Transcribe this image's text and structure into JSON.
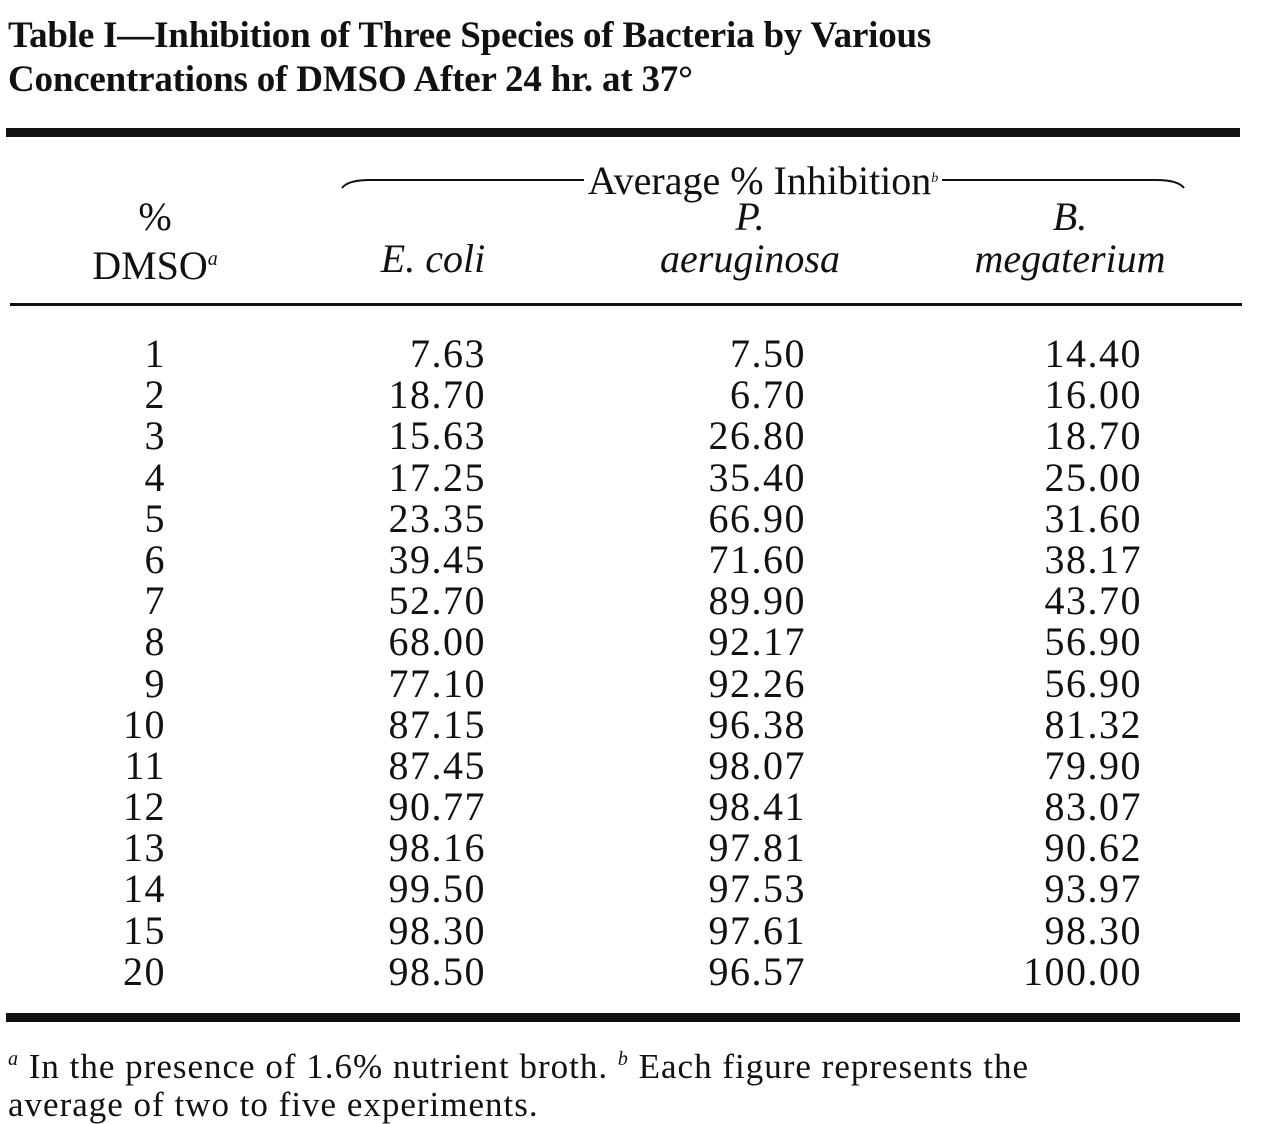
{
  "title": {
    "line1": "Table I—Inhibition of Three Species of Bacteria by Various",
    "line2": "Concentrations of DMSO After 24 hr. at 37°"
  },
  "header": {
    "span_label": "Average % Inhibition",
    "span_note": "b",
    "col0_line1": "%",
    "col0_line2": "DMSO",
    "col0_note": "a",
    "col1": "E. coli",
    "col2_line1": "P.",
    "col2_line2": "aeruginosa",
    "col3_line1": "B.",
    "col3_line2": "megaterium"
  },
  "rows": [
    [
      "1",
      "7.63",
      "7.50",
      "14.40"
    ],
    [
      "2",
      "18.70",
      "6.70",
      "16.00"
    ],
    [
      "3",
      "15.63",
      "26.80",
      "18.70"
    ],
    [
      "4",
      "17.25",
      "35.40",
      "25.00"
    ],
    [
      "5",
      "23.35",
      "66.90",
      "31.60"
    ],
    [
      "6",
      "39.45",
      "71.60",
      "38.17"
    ],
    [
      "7",
      "52.70",
      "89.90",
      "43.70"
    ],
    [
      "8",
      "68.00",
      "92.17",
      "56.90"
    ],
    [
      "9",
      "77.10",
      "92.26",
      "56.90"
    ],
    [
      "10",
      "87.15",
      "96.38",
      "81.32"
    ],
    [
      "11",
      "87.45",
      "98.07",
      "79.90"
    ],
    [
      "12",
      "90.77",
      "98.41",
      "83.07"
    ],
    [
      "13",
      "98.16",
      "97.81",
      "90.62"
    ],
    [
      "14",
      "99.50",
      "97.53",
      "93.97"
    ],
    [
      "15",
      "98.30",
      "97.61",
      "98.30"
    ],
    [
      "20",
      "98.50",
      "96.57",
      "100.00"
    ]
  ],
  "footnote": {
    "a_mark": "a",
    "a_text": " In the presence of 1.6% nutrient broth. ",
    "b_mark": "b",
    "b_text": " Each figure represents the",
    "line2": "average of two to five experiments."
  }
}
